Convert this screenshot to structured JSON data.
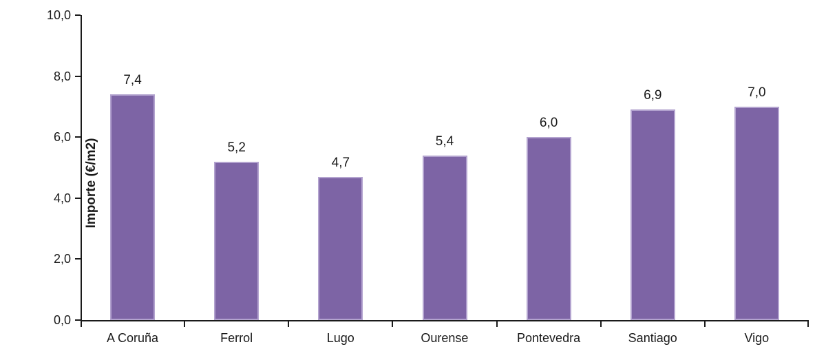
{
  "chart_data": {
    "type": "bar",
    "title": "",
    "categories": [
      "A Coruña",
      "Ferrol",
      "Lugo",
      "Ourense",
      "Pontevedra",
      "Santiago",
      "Vigo"
    ],
    "values": [
      7.4,
      5.2,
      4.7,
      5.4,
      6.0,
      6.9,
      7.0
    ],
    "value_labels": [
      "7,4",
      "5,2",
      "4,7",
      "5,4",
      "6,0",
      "6,9",
      "7,0"
    ],
    "xlabel": "",
    "ylabel": "Importe (€/m2)",
    "ylim": [
      0,
      10
    ],
    "ytick_values": [
      0,
      2,
      4,
      6,
      8,
      10
    ],
    "ytick_labels": [
      "0,0",
      "2,0",
      "4,0",
      "6,0",
      "8,0",
      "10,0"
    ],
    "grid": false,
    "legend_position": "none",
    "decimal_separator": ",",
    "colors": {
      "bar_fill": "#7d64a5",
      "bar_border": "#b3a3cf",
      "axis": "#1a1a1a",
      "text": "#1a1a1a",
      "background": "#ffffff"
    }
  }
}
